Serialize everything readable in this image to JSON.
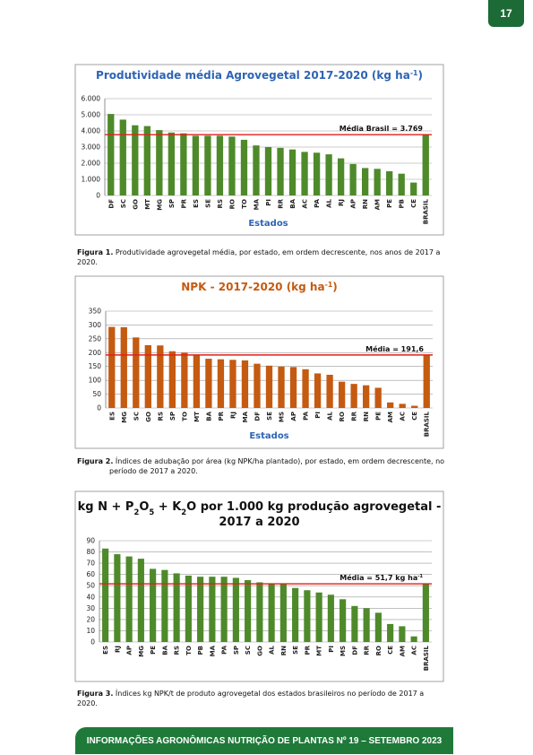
{
  "page_number": "17",
  "chart_data": [
    {
      "type": "bar",
      "title_lines": [
        [
          "Produtividade média Agrovegetal 2017-2020 (kg ha",
          "-1",
          ")"
        ]
      ],
      "title_script": "super",
      "title_color": "#2e64b5",
      "categories": [
        "DF",
        "SC",
        "GO",
        "MT",
        "MG",
        "SP",
        "PR",
        "ES",
        "SE",
        "RS",
        "RO",
        "TO",
        "MA",
        "PI",
        "RR",
        "BA",
        "AC",
        "PA",
        "AL",
        "RJ",
        "AP",
        "RN",
        "AM",
        "PE",
        "PB",
        "CE",
        "BRASIL"
      ],
      "values": [
        5050,
        4700,
        4350,
        4300,
        4050,
        3900,
        3850,
        3700,
        3700,
        3700,
        3650,
        3450,
        3100,
        3000,
        2950,
        2850,
        2700,
        2650,
        2550,
        2300,
        1950,
        1700,
        1650,
        1500,
        1350,
        800,
        3769
      ],
      "color": "#4e8a2a",
      "ylim": [
        0,
        6000
      ],
      "yticks": [
        0,
        {
          "value": 1000,
          "label": "1.000"
        },
        {
          "value": 2000,
          "label": "2.000"
        },
        {
          "value": 3000,
          "label": "3.000"
        },
        {
          "value": 4000,
          "label": "4.000"
        },
        {
          "value": 5000,
          "label": "5.000"
        },
        {
          "value": 6000,
          "label": "6.000"
        }
      ],
      "grid": true,
      "x_label": "Estados",
      "mean_line": 3769,
      "mean_label_parts": [
        "Média Brasil = 3.769"
      ],
      "mean_color": "#e0201b"
    },
    {
      "type": "bar",
      "title_lines": [
        [
          "NPK - 2017-2020 (kg ha",
          "-1",
          ")"
        ]
      ],
      "title_script": "super",
      "title_color": "#c55a11",
      "categories": [
        "ES",
        "MG",
        "SC",
        "GO",
        "RS",
        "SP",
        "TO",
        "MT",
        "BA",
        "PR",
        "RJ",
        "MA",
        "DF",
        "SE",
        "MS",
        "AP",
        "PA",
        "PI",
        "AL",
        "RO",
        "RR",
        "RN",
        "PE",
        "AM",
        "AC",
        "CE",
        "BRASIL"
      ],
      "values": [
        293,
        292,
        255,
        227,
        226,
        205,
        200,
        190,
        178,
        176,
        174,
        172,
        160,
        153,
        150,
        148,
        140,
        125,
        120,
        95,
        87,
        82,
        73,
        20,
        15,
        8,
        191.6
      ],
      "color": "#c55a11",
      "ylim": [
        0,
        350
      ],
      "yticks": [
        0,
        50,
        100,
        150,
        200,
        250,
        300,
        350
      ],
      "grid": true,
      "x_label": "Estados",
      "mean_line": 191.6,
      "mean_label_parts": [
        "Média = 191,6"
      ],
      "mean_color": "#e0201b"
    },
    {
      "type": "bar",
      "title_lines": [
        [
          "kg N + P",
          "2",
          "O",
          "5",
          " + K",
          "2",
          "O por 1.000 kg produção agrovegetal -"
        ],
        [
          "2017 a 2020"
        ]
      ],
      "title_script": "sub",
      "title_color": "#111111",
      "categories": [
        "ES",
        "RJ",
        "AP",
        "MG",
        "PE",
        "BA",
        "RS",
        "TO",
        "PB",
        "MA",
        "PA",
        "SP",
        "SC",
        "GO",
        "AL",
        "RN",
        "SE",
        "PR",
        "MT",
        "PI",
        "MS",
        "DF",
        "RR",
        "RO",
        "CE",
        "AM",
        "AC",
        "BRASIL"
      ],
      "values": [
        83,
        78,
        76,
        74,
        65,
        64,
        61,
        59,
        58,
        58,
        58,
        57,
        55,
        53,
        52,
        52,
        48,
        46,
        44,
        42,
        38,
        32,
        30,
        26,
        16,
        14,
        5,
        51.7
      ],
      "color": "#4e8a2a",
      "ylim": [
        0,
        90
      ],
      "yticks": [
        0,
        10,
        20,
        30,
        40,
        50,
        60,
        70,
        80,
        90
      ],
      "grid": true,
      "mean_line": 51.7,
      "mean_label_parts": [
        "Média = 51,7 kg ha",
        "-1"
      ],
      "mean_color": "#e0201b"
    }
  ],
  "captions": [
    {
      "label": "Figura 1.",
      "text": "Produtividade agrovegetal média, por estado, em ordem decrescente, nos anos de 2017 a 2020."
    },
    {
      "label": "Figura 2.",
      "text": "Índices de adubação por área (kg NPK/ha plantado), por estado, em ordem decrescente, no período de 2017 a 2020."
    },
    {
      "label": "Figura 3.",
      "text": "Índices kg NPK/t de produto agrovegetal dos estados brasileiros no período de 2017 a 2020."
    }
  ],
  "footer": "INFORMAÇÕES AGRONÔMICAS NUTRIÇÃO DE PLANTAS Nº 19 – SETEMBRO 2023"
}
